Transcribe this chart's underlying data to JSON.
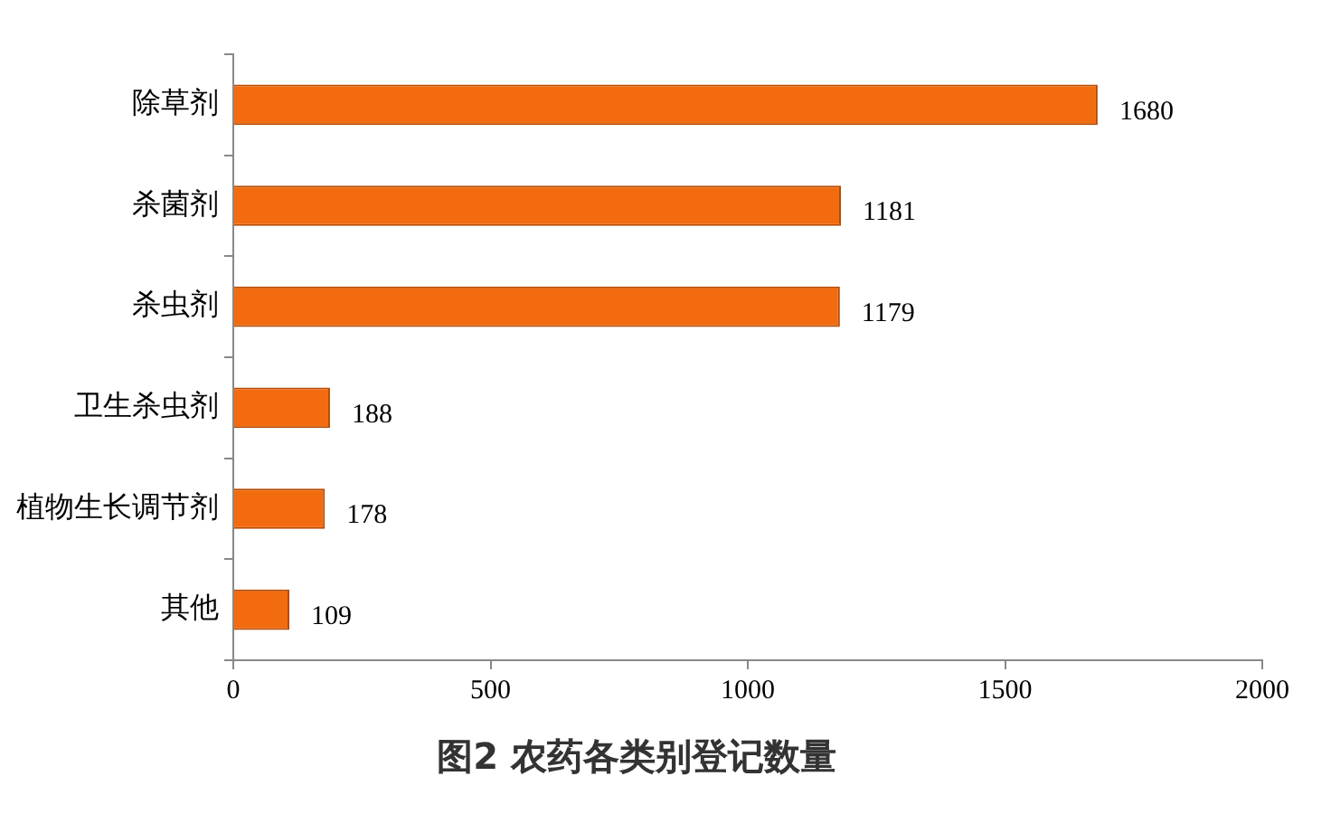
{
  "chart_data": {
    "type": "bar",
    "orientation": "horizontal",
    "title": "图2 农药各类别登记数量",
    "categories": [
      "除草剂",
      "杀菌剂",
      "杀虫剂",
      "卫生杀虫剂",
      "植物生长调节剂",
      "其他"
    ],
    "values": [
      1680,
      1181,
      1179,
      188,
      178,
      109
    ],
    "color": "#f26b0f",
    "xlim": [
      0,
      2000
    ],
    "xticks": [
      0,
      500,
      1000,
      1500,
      2000
    ],
    "grid": false,
    "data_labels": true
  }
}
